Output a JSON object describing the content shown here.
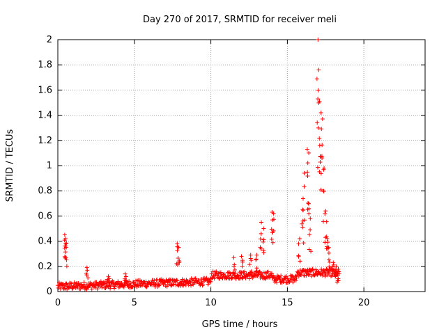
{
  "chart_data": {
    "type": "scatter",
    "title": "Day 270 of 2017, SRMTID for receiver meli",
    "xlabel": "GPS time / hours",
    "ylabel": "SRMTID / TECUs",
    "xlim": [
      0,
      24
    ],
    "ylim": [
      0,
      2
    ],
    "xticks": [
      0,
      5,
      10,
      15,
      20
    ],
    "xtick_labels": [
      "0",
      "5",
      "10",
      "15",
      "20"
    ],
    "yticks": [
      0,
      0.2,
      0.4,
      0.6,
      0.8,
      1,
      1.2,
      1.4,
      1.6,
      1.8,
      2
    ],
    "ytick_labels": [
      "0",
      "0.2",
      "0.4",
      "0.6",
      "0.8",
      "1",
      "1.2",
      "1.4",
      "1.6",
      "1.8",
      "2"
    ],
    "grid": true,
    "marker": "+",
    "series_color": "#ff0000",
    "approx_series": [
      {
        "name": "baseline",
        "x_range": [
          0,
          18.4
        ],
        "y_range": [
          0.02,
          0.18
        ]
      },
      {
        "name": "spikes",
        "points": [
          [
            0.45,
            0.45
          ],
          [
            0.5,
            0.42
          ],
          [
            0.55,
            0.35
          ],
          [
            1.9,
            0.19
          ],
          [
            3.3,
            0.12
          ],
          [
            4.4,
            0.14
          ],
          [
            7.8,
            0.38
          ],
          [
            7.9,
            0.35
          ],
          [
            11.5,
            0.27
          ],
          [
            12.0,
            0.28
          ],
          [
            12.6,
            0.29
          ],
          [
            13.0,
            0.29
          ],
          [
            13.3,
            0.55
          ],
          [
            13.45,
            0.5
          ],
          [
            14.0,
            0.63
          ],
          [
            14.1,
            0.62
          ],
          [
            15.8,
            0.42
          ],
          [
            16.0,
            0.65
          ],
          [
            16.1,
            0.94
          ],
          [
            16.3,
            1.13
          ],
          [
            16.4,
            1.1
          ],
          [
            16.5,
            0.58
          ],
          [
            17.0,
            2.0
          ],
          [
            17.05,
            1.76
          ],
          [
            17.1,
            1.51
          ],
          [
            17.2,
            1.42
          ],
          [
            17.3,
            1.37
          ],
          [
            17.4,
            0.98
          ],
          [
            17.5,
            0.64
          ],
          [
            17.6,
            0.42
          ],
          [
            17.7,
            0.35
          ],
          [
            18.0,
            0.23
          ],
          [
            18.2,
            0.2
          ],
          [
            18.3,
            0.13
          ]
        ]
      }
    ]
  }
}
